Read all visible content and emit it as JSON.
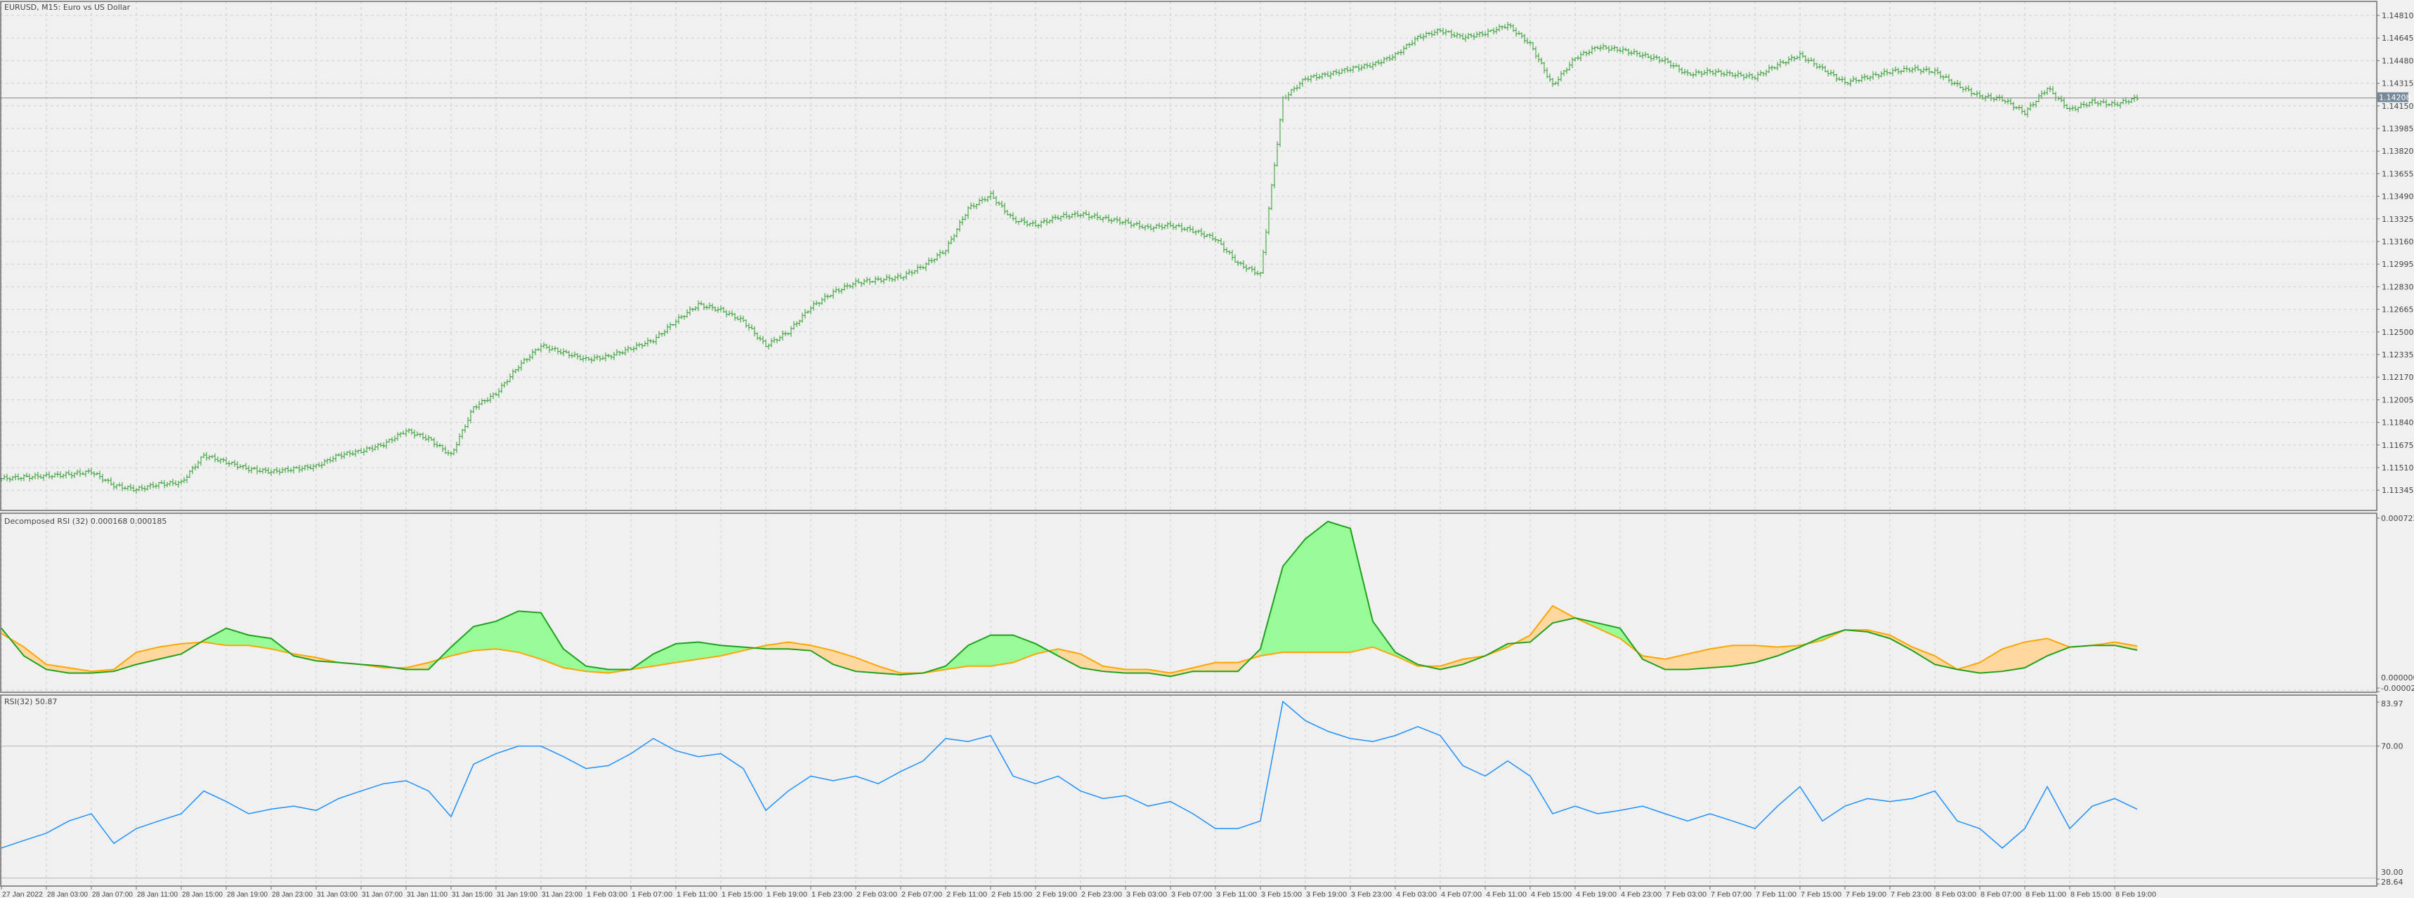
{
  "window": {
    "title": "EURUSD, M15:  Euro vs US Dollar"
  },
  "colors": {
    "background": "#f0f0f0",
    "grid": "#cfcfcf",
    "frame": "#6e6e6e",
    "bars": "#2e9b2e",
    "current_price_badge": "#778899",
    "green_line": "#1fa01f",
    "green_fill": "#98fb98",
    "orange_line": "#ffa500",
    "orange_fill": "#ffd8a0",
    "rsi_line": "#1e90ff"
  },
  "chart_data": [
    {
      "type": "ohlc",
      "title": "EURUSD, M15:  Euro vs US Dollar",
      "timeframe": "M15",
      "current_price": 1.14208,
      "current_price_label": "1.14208",
      "y_ticks": [
        "1.14810",
        "1.14645",
        "1.14480",
        "1.14315",
        "1.14150",
        "1.13985",
        "1.13820",
        "1.13655",
        "1.13490",
        "1.13325",
        "1.13160",
        "1.12995",
        "1.12830",
        "1.12665",
        "1.12500",
        "1.12335",
        "1.12170",
        "1.12005",
        "1.11840",
        "1.11675",
        "1.11510",
        "1.11345"
      ],
      "ylim": [
        1.1127,
        1.1487
      ],
      "grid": true,
      "close_every_2h": [
        1.1143,
        1.1144,
        1.1145,
        1.1146,
        1.1148,
        1.1138,
        1.1135,
        1.1139,
        1.114,
        1.116,
        1.1155,
        1.115,
        1.1148,
        1.115,
        1.1152,
        1.116,
        1.1163,
        1.1168,
        1.1178,
        1.1172,
        1.116,
        1.1195,
        1.1205,
        1.1225,
        1.124,
        1.1235,
        1.123,
        1.1232,
        1.1238,
        1.1244,
        1.1258,
        1.127,
        1.1266,
        1.1258,
        1.124,
        1.125,
        1.1268,
        1.1279,
        1.1286,
        1.1288,
        1.129,
        1.1298,
        1.131,
        1.134,
        1.135,
        1.1332,
        1.1328,
        1.1334,
        1.1336,
        1.1333,
        1.133,
        1.1326,
        1.1328,
        1.1324,
        1.1318,
        1.13,
        1.1292,
        1.142,
        1.1435,
        1.1438,
        1.1442,
        1.1445,
        1.1452,
        1.1465,
        1.147,
        1.1465,
        1.1468,
        1.1474,
        1.146,
        1.143,
        1.145,
        1.1458,
        1.1456,
        1.1452,
        1.1448,
        1.1438,
        1.144,
        1.1438,
        1.1436,
        1.1445,
        1.1452,
        1.1442,
        1.1432,
        1.1436,
        1.144,
        1.1442,
        1.144,
        1.143,
        1.1422,
        1.142,
        1.141,
        1.1428,
        1.1412,
        1.1418,
        1.1416,
        1.14208
      ]
    },
    {
      "type": "area",
      "title": "Decomposed RSI (32) 0.000168 0.000185",
      "y_ticks": [
        "0.000722",
        "0.000000",
        "-0.000026"
      ],
      "ylim": [
        -2.6e-05,
        0.000722
      ],
      "series": [
        {
          "values": [
            0.00026,
            0.000144,
            8.7e-05,
            7.2e-05,
            7.2e-05,
            7.9e-05,
            0.000108,
            0.00013,
            0.000152,
            0.000209,
            0.00026,
            0.000231,
            0.000217,
            0.000144,
            0.000123,
            0.000116,
            0.000108,
            0.000101,
            8.7e-05,
            8.7e-05,
            0.000181,
            0.000267,
            0.000289,
            0.000332,
            0.000325,
            0.000173,
            0.000101,
            8.7e-05,
            8.7e-05,
            0.000152,
            0.000195,
            0.000202,
            0.000188,
            0.000181,
            0.000173,
            0.000173,
            0.000166,
            0.000108,
            7.9e-05,
            7.2e-05,
            6.5e-05,
            7.2e-05,
            0.000101,
            0.000188,
            0.000231,
            0.000231,
            0.000195,
            0.000144,
            9.4e-05,
            7.9e-05,
            7.2e-05,
            7.2e-05,
            5.8e-05,
            7.9e-05,
            7.9e-05,
            7.9e-05,
            0.000173,
            0.00052,
            0.000635,
            0.000708,
            0.000679,
            0.000289,
            0.000159,
            0.000108,
            8.7e-05,
            0.000108,
            0.000144,
            0.000195,
            0.000202,
            0.000282,
            0.000303,
            0.000282,
            0.00026,
            0.00013,
            8.7e-05,
            8.7e-05,
            9.4e-05,
            0.000101,
            0.000116,
            0.000144,
            0.000181,
            0.000224,
            0.000253,
            0.000245,
            0.000217,
            0.000166,
            0.000108,
            8.7e-05,
            7.2e-05,
            7.9e-05,
            9.4e-05,
            0.000144,
            0.000181,
            0.000188,
            0.000188,
            0.000168
          ]
        },
        {
          "values": [
            0.000238,
            0.000181,
            0.000108,
            9.4e-05,
            7.9e-05,
            8.7e-05,
            0.000159,
            0.000181,
            0.000195,
            0.000202,
            0.000188,
            0.000188,
            0.000173,
            0.000152,
            0.000137,
            0.000116,
            0.000108,
            9.4e-05,
            9.4e-05,
            0.000116,
            0.000144,
            0.000166,
            0.000173,
            0.000159,
            0.00013,
            9.4e-05,
            7.9e-05,
            7.2e-05,
            8.7e-05,
            0.000101,
            0.000116,
            0.00013,
            0.000144,
            0.000166,
            0.000188,
            0.000202,
            0.000188,
            0.000166,
            0.000137,
            0.000101,
            7.2e-05,
            7.2e-05,
            8.7e-05,
            0.000101,
            0.000101,
            0.000116,
            0.000152,
            0.000173,
            0.000152,
            0.000101,
            8.7e-05,
            8.7e-05,
            7.2e-05,
            9.4e-05,
            0.000116,
            0.000116,
            0.000144,
            0.000159,
            0.000159,
            0.000159,
            0.000159,
            0.000181,
            0.000144,
            0.000101,
            0.000101,
            0.00013,
            0.000144,
            0.000181,
            0.000231,
            0.000354,
            0.000303,
            0.00026,
            0.000217,
            0.000144,
            0.00013,
            0.000152,
            0.000173,
            0.000188,
            0.000188,
            0.000181,
            0.000188,
            0.000209,
            0.000253,
            0.000253,
            0.000231,
            0.000181,
            0.000144,
            8.7e-05,
            0.000116,
            0.000173,
            0.000202,
            0.000217,
            0.000181,
            0.000188,
            0.000202,
            0.000185
          ]
        }
      ]
    },
    {
      "type": "line",
      "title": "RSI(32) 50.87",
      "y_ticks": [
        "83.97",
        "70.00",
        "30.00",
        "28.64"
      ],
      "levels": [
        70,
        30
      ],
      "ylim": [
        28.64,
        83.97
      ],
      "values": [
        39.1,
        41.4,
        43.6,
        47.3,
        49.5,
        40.5,
        45.0,
        47.3,
        49.5,
        56.4,
        53.2,
        49.5,
        50.9,
        51.8,
        50.5,
        54.1,
        56.4,
        58.6,
        59.5,
        56.4,
        48.6,
        64.5,
        67.7,
        70.0,
        70.0,
        66.8,
        63.2,
        64.1,
        67.7,
        72.3,
        68.6,
        66.8,
        67.7,
        63.2,
        50.5,
        56.4,
        60.9,
        59.5,
        60.9,
        58.6,
        62.3,
        65.5,
        72.3,
        71.4,
        73.2,
        60.9,
        58.6,
        60.9,
        56.4,
        54.1,
        55.0,
        51.8,
        53.2,
        49.5,
        45.0,
        45.0,
        47.3,
        83.5,
        77.7,
        74.5,
        72.3,
        71.4,
        73.2,
        75.9,
        73.2,
        64.1,
        60.9,
        65.5,
        60.9,
        49.5,
        51.8,
        49.5,
        50.5,
        51.8,
        49.5,
        47.3,
        49.5,
        47.3,
        45.0,
        51.8,
        57.7,
        47.3,
        51.8,
        54.1,
        53.2,
        54.1,
        56.4,
        47.3,
        45.0,
        39.1,
        45.0,
        57.7,
        45.0,
        51.8,
        54.1,
        50.87
      ]
    }
  ],
  "time_axis": [
    "27 Jan 2022",
    "28 Jan 03:00",
    "28 Jan 07:00",
    "28 Jan 11:00",
    "28 Jan 15:00",
    "28 Jan 19:00",
    "28 Jan 23:00",
    "31 Jan 03:00",
    "31 Jan 07:00",
    "31 Jan 11:00",
    "31 Jan 15:00",
    "31 Jan 19:00",
    "31 Jan 23:00",
    "1 Feb 03:00",
    "1 Feb 07:00",
    "1 Feb 11:00",
    "1 Feb 15:00",
    "1 Feb 19:00",
    "1 Feb 23:00",
    "2 Feb 03:00",
    "2 Feb 07:00",
    "2 Feb 11:00",
    "2 Feb 15:00",
    "2 Feb 19:00",
    "2 Feb 23:00",
    "3 Feb 03:00",
    "3 Feb 07:00",
    "3 Feb 11:00",
    "3 Feb 15:00",
    "3 Feb 19:00",
    "3 Feb 23:00",
    "4 Feb 03:00",
    "4 Feb 07:00",
    "4 Feb 11:00",
    "4 Feb 15:00",
    "4 Feb 19:00",
    "4 Feb 23:00",
    "7 Feb 03:00",
    "7 Feb 07:00",
    "7 Feb 11:00",
    "7 Feb 15:00",
    "7 Feb 19:00",
    "7 Feb 23:00",
    "8 Feb 03:00",
    "8 Feb 07:00",
    "8 Feb 11:00",
    "8 Feb 15:00",
    "8 Feb 19:00"
  ]
}
